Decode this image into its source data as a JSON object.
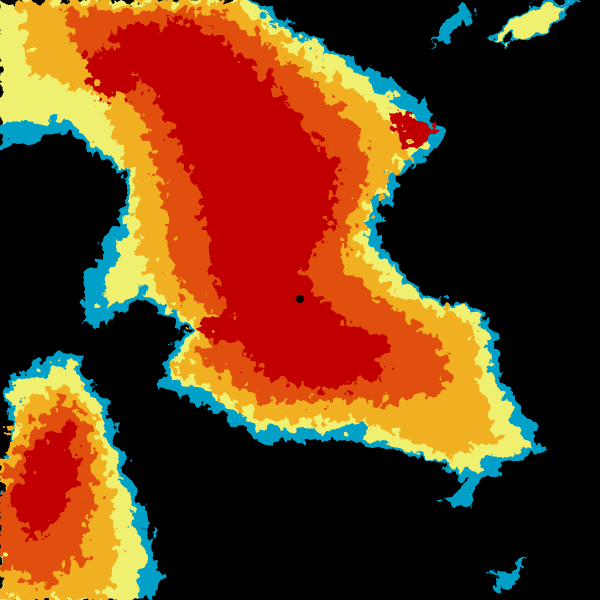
{
  "map": {
    "type": "weather-radar-reflectivity",
    "background_color": "#000000",
    "palette": {
      "edge": "#00a0c8",
      "light": "#f0f070",
      "moderate": "#f0b020",
      "heavy": "#e05010",
      "intense": "#c00000"
    },
    "radar_site_marker": {
      "icon": "radar-site-dot-icon",
      "color": "#000000"
    }
  }
}
